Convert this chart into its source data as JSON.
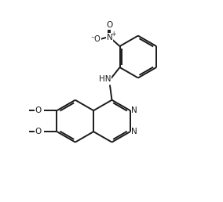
{
  "background_color": "#ffffff",
  "line_color": "#1a1a1a",
  "line_width": 1.4,
  "font_size": 7.5,
  "figsize": [
    2.84,
    2.58
  ],
  "dpi": 100,
  "xlim": [
    0,
    10
  ],
  "ylim": [
    0,
    10
  ]
}
